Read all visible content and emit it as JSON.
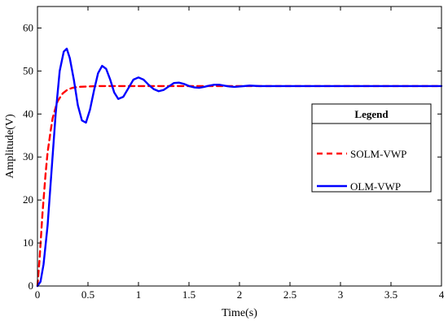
{
  "chart_data": {
    "type": "line",
    "title": "",
    "xlabel": "Time(s)",
    "ylabel": "Amplitude(V)",
    "xlim": [
      0,
      4
    ],
    "ylim": [
      0,
      65
    ],
    "xticks": [
      0,
      0.5,
      1,
      1.5,
      2,
      2.5,
      3,
      3.5,
      4
    ],
    "yticks": [
      0,
      10,
      20,
      30,
      40,
      50,
      60
    ],
    "grid": false,
    "legend": {
      "title": "Legend",
      "placement": "right"
    },
    "series": [
      {
        "name": "SOLM-VWP",
        "color": "#ff0000",
        "style": "dashed",
        "x": [
          0,
          0.02,
          0.05,
          0.08,
          0.1,
          0.13,
          0.15,
          0.18,
          0.2,
          0.25,
          0.3,
          0.35,
          0.4,
          0.5,
          0.6,
          0.8,
          1.0,
          1.5,
          2.0,
          2.5,
          3.0,
          3.5,
          4.0
        ],
        "y": [
          0,
          6,
          17,
          26,
          31,
          36,
          39,
          41.5,
          43,
          44.8,
          45.7,
          46.1,
          46.3,
          46.4,
          46.5,
          46.5,
          46.5,
          46.5,
          46.5,
          46.5,
          46.5,
          46.5,
          46.5
        ]
      },
      {
        "name": "OLM-VWP",
        "color": "#0000ff",
        "style": "solid",
        "x": [
          0,
          0.03,
          0.06,
          0.1,
          0.14,
          0.18,
          0.22,
          0.26,
          0.29,
          0.32,
          0.36,
          0.4,
          0.44,
          0.48,
          0.52,
          0.56,
          0.6,
          0.64,
          0.68,
          0.72,
          0.76,
          0.8,
          0.85,
          0.9,
          0.95,
          1.0,
          1.05,
          1.1,
          1.15,
          1.2,
          1.25,
          1.3,
          1.35,
          1.4,
          1.45,
          1.5,
          1.55,
          1.6,
          1.65,
          1.7,
          1.75,
          1.8,
          1.85,
          1.9,
          1.95,
          2.0,
          2.1,
          2.2,
          2.3,
          2.4,
          2.5,
          3.0,
          3.5,
          4.0
        ],
        "y": [
          0,
          1,
          5,
          14,
          27,
          40,
          50,
          54.5,
          55.2,
          53,
          48,
          42,
          38.5,
          38,
          41,
          45.5,
          49.5,
          51.2,
          50.5,
          48,
          45,
          43.5,
          44,
          46,
          48,
          48.5,
          48,
          46.8,
          45.8,
          45.3,
          45.6,
          46.4,
          47.2,
          47.3,
          47,
          46.5,
          46.2,
          46.1,
          46.3,
          46.6,
          46.8,
          46.8,
          46.6,
          46.4,
          46.3,
          46.4,
          46.6,
          46.5,
          46.5,
          46.5,
          46.5,
          46.5,
          46.5,
          46.5
        ]
      }
    ]
  }
}
